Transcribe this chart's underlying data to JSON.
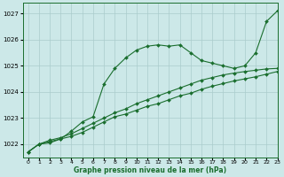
{
  "background_color": "#cce8e8",
  "grid_color": "#aacccc",
  "line_color": "#1a6e2e",
  "xlabel": "Graphe pression niveau de la mer (hPa)",
  "xlim": [
    -0.5,
    23
  ],
  "ylim": [
    1021.5,
    1027.4
  ],
  "yticks": [
    1022,
    1023,
    1024,
    1025,
    1026,
    1027
  ],
  "xticks": [
    0,
    1,
    2,
    3,
    4,
    5,
    6,
    7,
    8,
    9,
    10,
    11,
    12,
    13,
    14,
    15,
    16,
    17,
    18,
    19,
    20,
    21,
    22,
    23
  ],
  "series1_x": [
    0,
    1,
    2,
    3,
    4,
    5,
    6,
    7,
    8,
    9,
    10,
    11,
    12,
    13,
    14,
    15,
    16,
    17,
    18,
    19,
    20,
    21,
    22,
    23
  ],
  "series1_y": [
    1021.7,
    1022.0,
    1022.05,
    1022.2,
    1022.5,
    1022.85,
    1023.05,
    1024.3,
    1024.9,
    1025.3,
    1025.6,
    1025.75,
    1025.8,
    1025.75,
    1025.8,
    1025.5,
    1025.2,
    1025.1,
    1025.0,
    1024.9,
    1025.0,
    1025.5,
    1026.7,
    1027.1
  ],
  "series2_x": [
    0,
    1,
    2,
    3,
    4,
    5,
    6,
    7,
    8,
    9,
    10,
    11,
    12,
    13,
    14,
    15,
    16,
    17,
    18,
    19,
    20,
    21,
    22,
    23
  ],
  "series2_y": [
    1021.7,
    1022.0,
    1022.15,
    1022.25,
    1022.4,
    1022.6,
    1022.8,
    1023.0,
    1023.2,
    1023.35,
    1023.55,
    1023.7,
    1023.85,
    1024.0,
    1024.15,
    1024.3,
    1024.45,
    1024.55,
    1024.65,
    1024.72,
    1024.78,
    1024.83,
    1024.88,
    1024.9
  ],
  "series3_x": [
    0,
    1,
    2,
    3,
    4,
    5,
    6,
    7,
    8,
    9,
    10,
    11,
    12,
    13,
    14,
    15,
    16,
    17,
    18,
    19,
    20,
    21,
    22,
    23
  ],
  "series3_y": [
    1021.7,
    1022.0,
    1022.1,
    1022.2,
    1022.3,
    1022.45,
    1022.65,
    1022.85,
    1023.05,
    1023.15,
    1023.3,
    1023.45,
    1023.55,
    1023.7,
    1023.85,
    1023.95,
    1024.1,
    1024.22,
    1024.32,
    1024.42,
    1024.5,
    1024.58,
    1024.68,
    1024.78
  ]
}
